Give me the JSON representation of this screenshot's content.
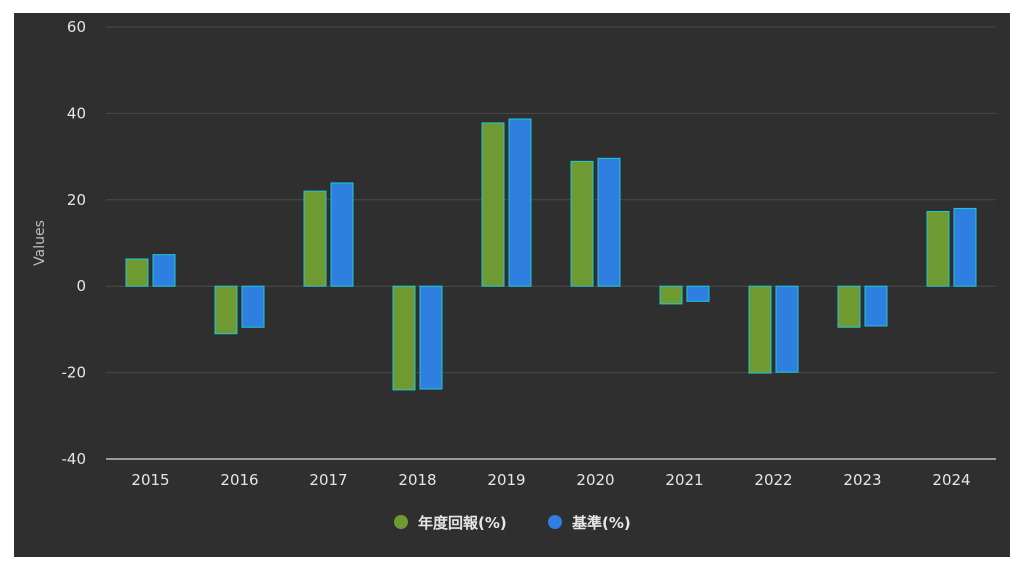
{
  "chart_data": {
    "type": "bar",
    "categories": [
      "2015",
      "2016",
      "2017",
      "2018",
      "2019",
      "2020",
      "2021",
      "2022",
      "2023",
      "2024"
    ],
    "series": [
      {
        "name": "年度回報(%)",
        "color": "#6f9a32",
        "values": [
          6.3,
          -11.0,
          22.0,
          -24.0,
          37.8,
          28.9,
          -4.1,
          -20.1,
          -9.5,
          17.3
        ]
      },
      {
        "name": "基準(%)",
        "color": "#2f7fe0",
        "values": [
          7.3,
          -9.5,
          23.9,
          -23.8,
          38.7,
          29.6,
          -3.5,
          -19.9,
          -9.2,
          18.0
        ]
      }
    ],
    "ylabel": "Values",
    "xlabel": "",
    "ylim": [
      -40,
      60
    ],
    "yticks": [
      -40,
      -20,
      0,
      20,
      40,
      60
    ],
    "grid": true,
    "legend_position": "bottom",
    "bar_outline_color": "#1ec9d8",
    "background_color": "#2f2f2f"
  }
}
